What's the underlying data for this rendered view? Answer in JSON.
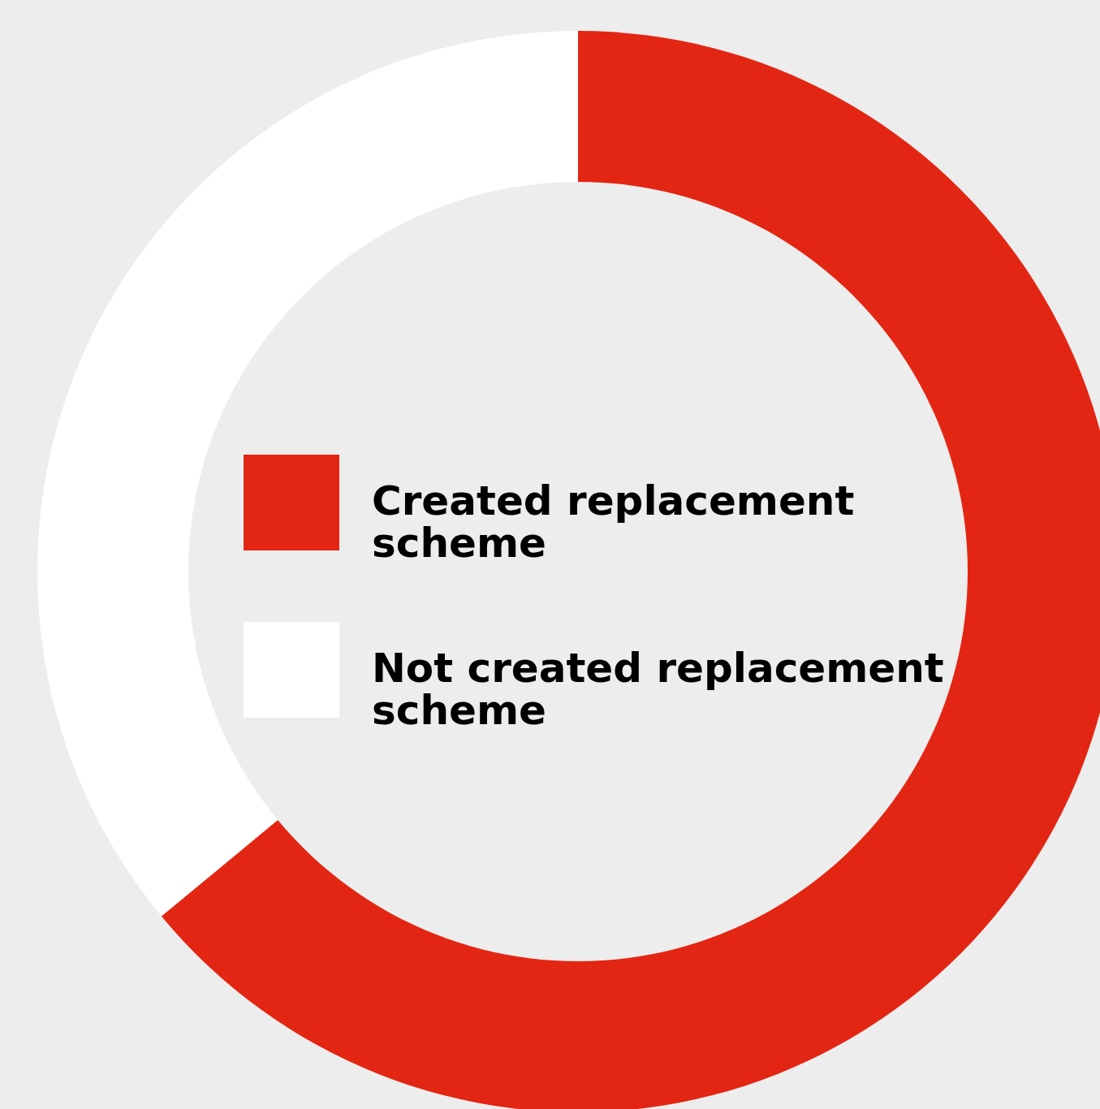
{
  "chart_data": {
    "type": "donut",
    "categories": [
      "Created replacement scheme",
      "Not created replacement scheme"
    ],
    "values": [
      64,
      36
    ],
    "colors": [
      "#e32613",
      "#ffffff"
    ],
    "legend": "center"
  }
}
